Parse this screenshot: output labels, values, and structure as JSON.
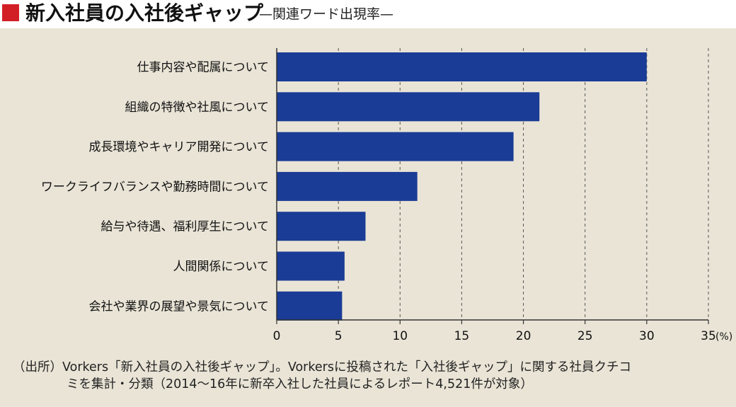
{
  "title": "新入社員の入社後ギャップ",
  "subtitle": "—関連ワード出現率—",
  "colors": {
    "accent_square": "#d21f26",
    "background": "#e9e4d6",
    "bar": "#1a3c96",
    "axis": "#333333",
    "grid": "#555555"
  },
  "chart_data": {
    "type": "bar",
    "orientation": "horizontal",
    "categories": [
      "仕事内容や配属について",
      "組織の特徴や社風について",
      "成長環境やキャリア開発について",
      "ワークライフバランスや勤務時間について",
      "給与や待遇、福利厚生について",
      "人間関係について",
      "会社や業界の展望や景気について"
    ],
    "values": [
      30.0,
      21.3,
      19.2,
      11.4,
      7.2,
      5.5,
      5.3
    ],
    "xlim": [
      0,
      35
    ],
    "x_ticks": [
      "0",
      "5",
      "10",
      "15",
      "20",
      "25",
      "30",
      "35"
    ],
    "unit": "(%)",
    "grid": "vertical dashed",
    "legend": "none"
  },
  "source": {
    "line1": "（出所）Vorkers「新入社員の入社後ギャップ」。Vorkersに投稿された「入社後ギャップ」に関する社員クチコ",
    "line2": "ミを集計・分類（2014〜16年に新卒入社した社員によるレポート4,521件が対象）"
  }
}
